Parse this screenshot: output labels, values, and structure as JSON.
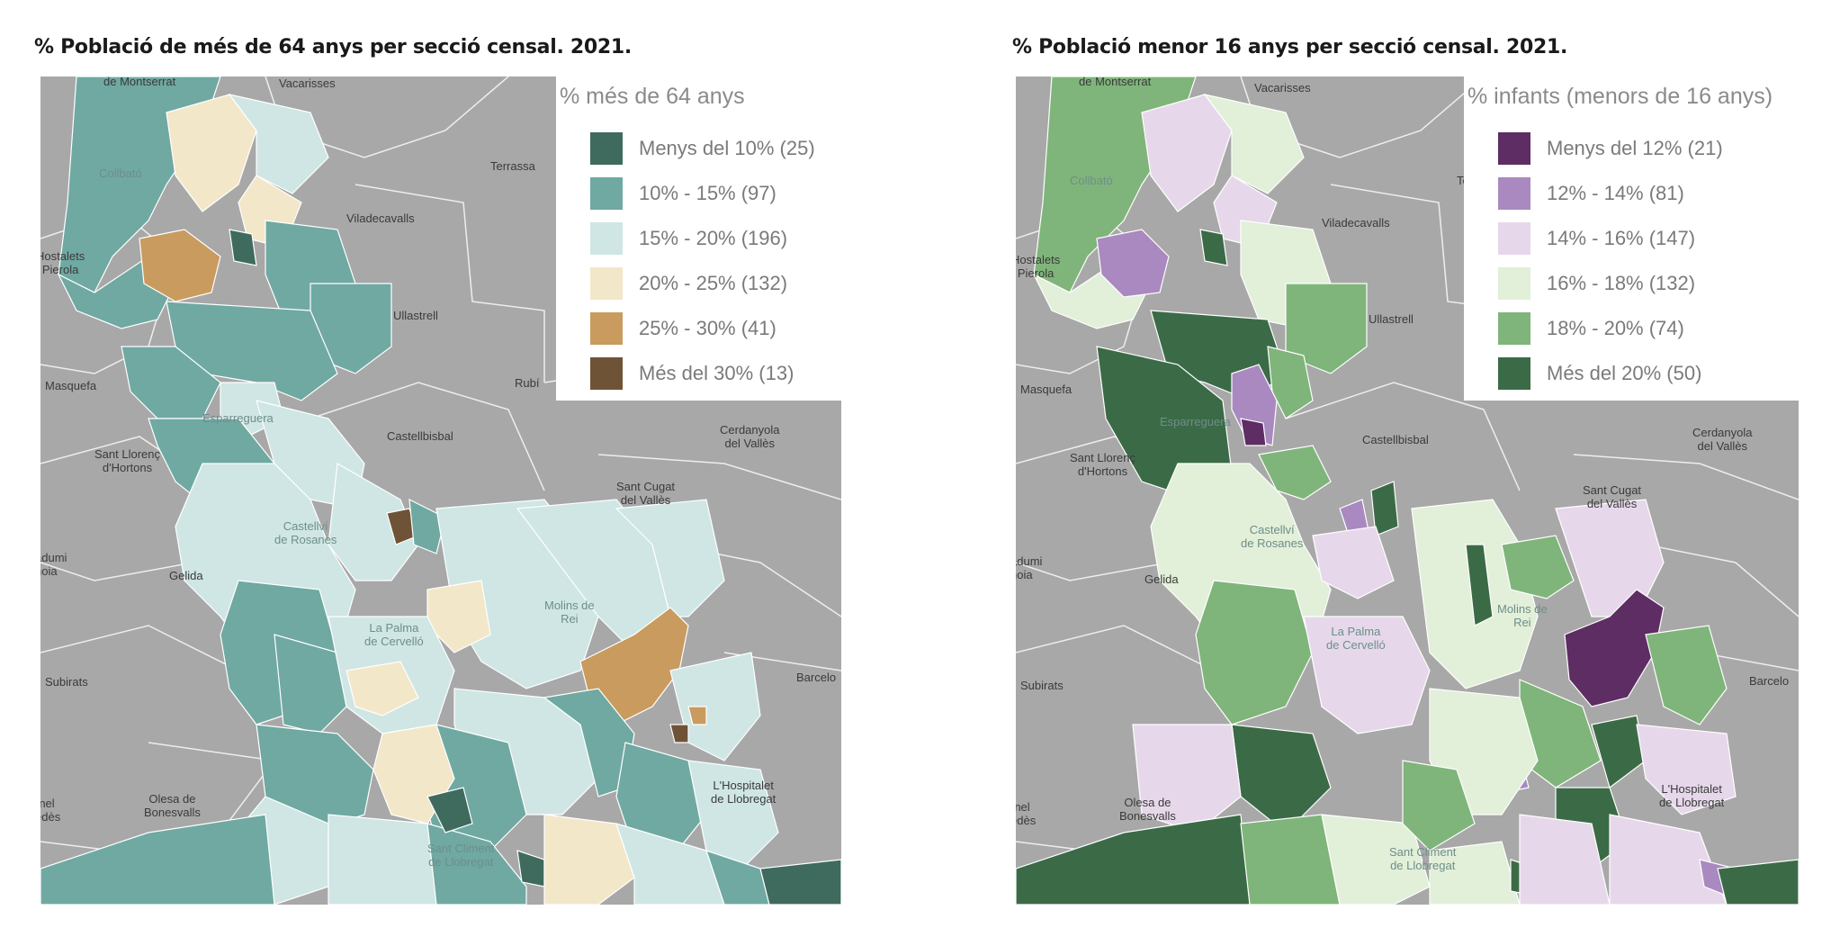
{
  "maps": [
    {
      "title": "% Població de més de 64 anys per secció censal. 2021.",
      "legend": {
        "title": "% més de 64 anys",
        "items": [
          {
            "label": "Menys del 10% (25)",
            "color": "#3f6b5e"
          },
          {
            "label": "10% - 15% (97)",
            "color": "#6fa9a2"
          },
          {
            "label": "15% - 20% (196)",
            "color": "#cfe6e4"
          },
          {
            "label": "20% - 25% (132)",
            "color": "#f3e7c9"
          },
          {
            "label": "25% - 30% (41)",
            "color": "#c99b5e"
          },
          {
            "label": "Més del 30% (13)",
            "color": "#6f5337"
          }
        ]
      },
      "place_labels": [
        "de Montserrat",
        "Vacarisses",
        "Terrassa",
        "Viladecavalls",
        "Collbató",
        "Hostalets\nPierola",
        "Ullastrell",
        "Rubí",
        "Masquefa",
        "Castellbisbal",
        "Cerdanyola\ndel Vallès",
        "Sant Llorenç\nd'Hortons",
        "Sant Cugat\ndel Vallès",
        "Esparreguera",
        "Castellví\nde Rosanes",
        "Gelida",
        "adumi\nnoia",
        "Molins de\nRei",
        "Subirats",
        "Barcelo",
        "La Palma\nde Cervelló",
        "Olesa de\nBonesvalls",
        "rnel\nedès",
        "Sant Climent\nde Llobregat",
        "L'Hospitalet\nde Llobregat"
      ]
    },
    {
      "title": "% Població menor 16 anys per secció censal. 2021.",
      "legend": {
        "title": "% infants (menors de 16 anys)",
        "items": [
          {
            "label": "Menys del 12% (21)",
            "color": "#5e2d63"
          },
          {
            "label": "12% - 14% (81)",
            "color": "#a989c0"
          },
          {
            "label": "14% - 16% (147)",
            "color": "#e6d8ea"
          },
          {
            "label": "16% - 18% (132)",
            "color": "#e2efd9"
          },
          {
            "label": "18% - 20% (74)",
            "color": "#7fb57a"
          },
          {
            "label": "Més del 20% (50)",
            "color": "#3b6b46"
          }
        ]
      },
      "place_labels": [
        "de Montserrat",
        "Vacarisses",
        "Te",
        "Viladecavalls",
        "Collbató",
        "Hostalets\nPierola",
        "Ullastrell",
        "Masquefa",
        "Castellbisbal",
        "Cerdanyola\ndel Vallès",
        "Sant Llorenç\nd'Hortons",
        "Sant Cugat\ndel Vallès",
        "Esparreguera",
        "Castellví\nde Rosanes",
        "Gelida",
        "adumi\nnoia",
        "Molins de\nRei",
        "Subirats",
        "Barcelo",
        "La Palma\nde Cervelló",
        "Olesa de\nBonesvalls",
        "rnel\nedès",
        "Sant Climent\nde Llobregat",
        "L'Hospitalet\nde Llobregat"
      ]
    }
  ]
}
